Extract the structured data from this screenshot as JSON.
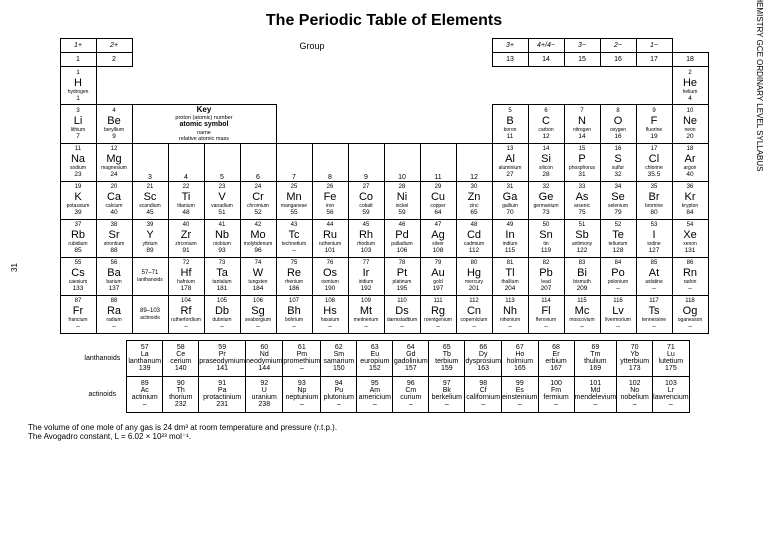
{
  "title": "The Periodic Table of Elements",
  "group_label": "Group",
  "key_label": "Key",
  "key_lines": [
    "proton (atomic) number",
    "atomic symbol",
    "name",
    "relative atomic mass"
  ],
  "side_right": "6092 CHEMISTRY GCE ORDINARY LEVEL SYLLABUS",
  "side_left": "31",
  "groups": [
    "1",
    "2",
    "13",
    "14",
    "15",
    "16",
    "17",
    "18"
  ],
  "ion_left": [
    "1+",
    "2+"
  ],
  "ion_right": [
    "3+",
    "4+/4−",
    "3−",
    "2−",
    "1−"
  ],
  "lanth_label": "lanthanoids",
  "act_label": "actinoids",
  "note1": "The volume of one mole of any gas is 24 dm³ at room temperature and pressure (r.t.p.).",
  "note2": "The Avogadro constant, L = 6.02 × 10²³ mol⁻¹.",
  "E": {
    "H": {
      "n": "1",
      "s": "H",
      "nm": "hydrogen",
      "m": "1"
    },
    "He": {
      "n": "2",
      "s": "He",
      "nm": "helium",
      "m": "4"
    },
    "Li": {
      "n": "3",
      "s": "Li",
      "nm": "lithium",
      "m": "7"
    },
    "Be": {
      "n": "4",
      "s": "Be",
      "nm": "beryllium",
      "m": "9"
    },
    "B": {
      "n": "5",
      "s": "B",
      "nm": "boron",
      "m": "11"
    },
    "C": {
      "n": "6",
      "s": "C",
      "nm": "carbon",
      "m": "12"
    },
    "N": {
      "n": "7",
      "s": "N",
      "nm": "nitrogen",
      "m": "14"
    },
    "O": {
      "n": "8",
      "s": "O",
      "nm": "oxygen",
      "m": "16"
    },
    "F": {
      "n": "9",
      "s": "F",
      "nm": "fluorine",
      "m": "19"
    },
    "Ne": {
      "n": "10",
      "s": "Ne",
      "nm": "neon",
      "m": "20"
    },
    "Na": {
      "n": "11",
      "s": "Na",
      "nm": "sodium",
      "m": "23"
    },
    "Mg": {
      "n": "12",
      "s": "Mg",
      "nm": "magnesium",
      "m": "24"
    },
    "Al": {
      "n": "13",
      "s": "Al",
      "nm": "aluminium",
      "m": "27"
    },
    "Si": {
      "n": "14",
      "s": "Si",
      "nm": "silicon",
      "m": "28"
    },
    "P": {
      "n": "15",
      "s": "P",
      "nm": "phosphorus",
      "m": "31"
    },
    "S": {
      "n": "16",
      "s": "S",
      "nm": "sulfur",
      "m": "32"
    },
    "Cl": {
      "n": "17",
      "s": "Cl",
      "nm": "chlorine",
      "m": "35.5"
    },
    "Ar": {
      "n": "18",
      "s": "Ar",
      "nm": "argon",
      "m": "40"
    },
    "K": {
      "n": "19",
      "s": "K",
      "nm": "potassium",
      "m": "39"
    },
    "Ca": {
      "n": "20",
      "s": "Ca",
      "nm": "calcium",
      "m": "40"
    },
    "Sc": {
      "n": "21",
      "s": "Sc",
      "nm": "scandium",
      "m": "45"
    },
    "Ti": {
      "n": "22",
      "s": "Ti",
      "nm": "titanium",
      "m": "48"
    },
    "V": {
      "n": "23",
      "s": "V",
      "nm": "vanadium",
      "m": "51"
    },
    "Cr": {
      "n": "24",
      "s": "Cr",
      "nm": "chromium",
      "m": "52"
    },
    "Mn": {
      "n": "25",
      "s": "Mn",
      "nm": "manganese",
      "m": "55"
    },
    "Fe": {
      "n": "26",
      "s": "Fe",
      "nm": "iron",
      "m": "56"
    },
    "Co": {
      "n": "27",
      "s": "Co",
      "nm": "cobalt",
      "m": "59"
    },
    "Ni": {
      "n": "28",
      "s": "Ni",
      "nm": "nickel",
      "m": "59"
    },
    "Cu": {
      "n": "29",
      "s": "Cu",
      "nm": "copper",
      "m": "64"
    },
    "Zn": {
      "n": "30",
      "s": "Zn",
      "nm": "zinc",
      "m": "65"
    },
    "Ga": {
      "n": "31",
      "s": "Ga",
      "nm": "gallium",
      "m": "70"
    },
    "Ge": {
      "n": "32",
      "s": "Ge",
      "nm": "germanium",
      "m": "73"
    },
    "As": {
      "n": "33",
      "s": "As",
      "nm": "arsenic",
      "m": "75"
    },
    "Se": {
      "n": "34",
      "s": "Se",
      "nm": "selenium",
      "m": "79"
    },
    "Br": {
      "n": "35",
      "s": "Br",
      "nm": "bromine",
      "m": "80"
    },
    "Kr": {
      "n": "36",
      "s": "Kr",
      "nm": "krypton",
      "m": "84"
    },
    "Rb": {
      "n": "37",
      "s": "Rb",
      "nm": "rubidium",
      "m": "85"
    },
    "Sr": {
      "n": "38",
      "s": "Sr",
      "nm": "strontium",
      "m": "88"
    },
    "Y": {
      "n": "39",
      "s": "Y",
      "nm": "yttrium",
      "m": "89"
    },
    "Zr": {
      "n": "40",
      "s": "Zr",
      "nm": "zirconium",
      "m": "91"
    },
    "Nb": {
      "n": "41",
      "s": "Nb",
      "nm": "niobium",
      "m": "93"
    },
    "Mo": {
      "n": "42",
      "s": "Mo",
      "nm": "molybdenum",
      "m": "96"
    },
    "Tc": {
      "n": "43",
      "s": "Tc",
      "nm": "technetium",
      "m": "–"
    },
    "Ru": {
      "n": "44",
      "s": "Ru",
      "nm": "ruthenium",
      "m": "101"
    },
    "Rh": {
      "n": "45",
      "s": "Rh",
      "nm": "rhodium",
      "m": "103"
    },
    "Pd": {
      "n": "46",
      "s": "Pd",
      "nm": "palladium",
      "m": "106"
    },
    "Ag": {
      "n": "47",
      "s": "Ag",
      "nm": "silver",
      "m": "108"
    },
    "Cd": {
      "n": "48",
      "s": "Cd",
      "nm": "cadmium",
      "m": "112"
    },
    "In": {
      "n": "49",
      "s": "In",
      "nm": "indium",
      "m": "115"
    },
    "Sn": {
      "n": "50",
      "s": "Sn",
      "nm": "tin",
      "m": "119"
    },
    "Sb": {
      "n": "51",
      "s": "Sb",
      "nm": "antimony",
      "m": "122"
    },
    "Te": {
      "n": "52",
      "s": "Te",
      "nm": "tellurium",
      "m": "128"
    },
    "I": {
      "n": "53",
      "s": "I",
      "nm": "iodine",
      "m": "127"
    },
    "Xe": {
      "n": "54",
      "s": "Xe",
      "nm": "xenon",
      "m": "131"
    },
    "Cs": {
      "n": "55",
      "s": "Cs",
      "nm": "caesium",
      "m": "133"
    },
    "Ba": {
      "n": "56",
      "s": "Ba",
      "nm": "barium",
      "m": "137"
    },
    "LaLu": {
      "n": "57–71",
      "s": "",
      "nm": "lanthanoids",
      "m": ""
    },
    "Hf": {
      "n": "72",
      "s": "Hf",
      "nm": "hafnium",
      "m": "178"
    },
    "Ta": {
      "n": "73",
      "s": "Ta",
      "nm": "tantalum",
      "m": "181"
    },
    "W": {
      "n": "74",
      "s": "W",
      "nm": "tungsten",
      "m": "184"
    },
    "Re": {
      "n": "75",
      "s": "Re",
      "nm": "rhenium",
      "m": "186"
    },
    "Os": {
      "n": "76",
      "s": "Os",
      "nm": "osmium",
      "m": "190"
    },
    "Ir": {
      "n": "77",
      "s": "Ir",
      "nm": "iridium",
      "m": "192"
    },
    "Pt": {
      "n": "78",
      "s": "Pt",
      "nm": "platinum",
      "m": "195"
    },
    "Au": {
      "n": "79",
      "s": "Au",
      "nm": "gold",
      "m": "197"
    },
    "Hg": {
      "n": "80",
      "s": "Hg",
      "nm": "mercury",
      "m": "201"
    },
    "Tl": {
      "n": "81",
      "s": "Tl",
      "nm": "thallium",
      "m": "204"
    },
    "Pb": {
      "n": "82",
      "s": "Pb",
      "nm": "lead",
      "m": "207"
    },
    "Bi": {
      "n": "83",
      "s": "Bi",
      "nm": "bismuth",
      "m": "209"
    },
    "Po": {
      "n": "84",
      "s": "Po",
      "nm": "polonium",
      "m": "–"
    },
    "At": {
      "n": "85",
      "s": "At",
      "nm": "astatine",
      "m": "–"
    },
    "Rn": {
      "n": "86",
      "s": "Rn",
      "nm": "radon",
      "m": "–"
    },
    "Fr": {
      "n": "87",
      "s": "Fr",
      "nm": "francium",
      "m": "–"
    },
    "Ra": {
      "n": "88",
      "s": "Ra",
      "nm": "radium",
      "m": "–"
    },
    "AcLr": {
      "n": "89–103",
      "s": "",
      "nm": "actinoids",
      "m": ""
    },
    "Rf": {
      "n": "104",
      "s": "Rf",
      "nm": "rutherfordium",
      "m": "–"
    },
    "Db": {
      "n": "105",
      "s": "Db",
      "nm": "dubnium",
      "m": "–"
    },
    "Sg": {
      "n": "106",
      "s": "Sg",
      "nm": "seaborgium",
      "m": "–"
    },
    "Bh": {
      "n": "107",
      "s": "Bh",
      "nm": "bohrium",
      "m": "–"
    },
    "Hs": {
      "n": "108",
      "s": "Hs",
      "nm": "hassium",
      "m": "–"
    },
    "Mt": {
      "n": "109",
      "s": "Mt",
      "nm": "meitnerium",
      "m": "–"
    },
    "Ds": {
      "n": "110",
      "s": "Ds",
      "nm": "darmstadtium",
      "m": "–"
    },
    "Rg": {
      "n": "111",
      "s": "Rg",
      "nm": "roentgenium",
      "m": "–"
    },
    "Cn": {
      "n": "112",
      "s": "Cn",
      "nm": "copernicium",
      "m": "–"
    },
    "Nh": {
      "n": "113",
      "s": "Nh",
      "nm": "nihonium",
      "m": "–"
    },
    "Fl": {
      "n": "114",
      "s": "Fl",
      "nm": "flerovium",
      "m": "–"
    },
    "Mc": {
      "n": "115",
      "s": "Mc",
      "nm": "moscovium",
      "m": "–"
    },
    "Lv": {
      "n": "116",
      "s": "Lv",
      "nm": "livermorium",
      "m": "–"
    },
    "Ts": {
      "n": "117",
      "s": "Ts",
      "nm": "tennessine",
      "m": "–"
    },
    "Og": {
      "n": "118",
      "s": "Og",
      "nm": "oganesson",
      "m": "–"
    },
    "La": {
      "n": "57",
      "s": "La",
      "nm": "lanthanum",
      "m": "139"
    },
    "Ce": {
      "n": "58",
      "s": "Ce",
      "nm": "cerium",
      "m": "140"
    },
    "Pr": {
      "n": "59",
      "s": "Pr",
      "nm": "praseodymium",
      "m": "141"
    },
    "Nd": {
      "n": "60",
      "s": "Nd",
      "nm": "neodymium",
      "m": "144"
    },
    "Pm": {
      "n": "61",
      "s": "Pm",
      "nm": "promethium",
      "m": "–"
    },
    "Sm": {
      "n": "62",
      "s": "Sm",
      "nm": "samarium",
      "m": "150"
    },
    "Eu": {
      "n": "63",
      "s": "Eu",
      "nm": "europium",
      "m": "152"
    },
    "Gd": {
      "n": "64",
      "s": "Gd",
      "nm": "gadolinium",
      "m": "157"
    },
    "Tb": {
      "n": "65",
      "s": "Tb",
      "nm": "terbium",
      "m": "159"
    },
    "Dy": {
      "n": "66",
      "s": "Dy",
      "nm": "dysprosium",
      "m": "163"
    },
    "Ho": {
      "n": "67",
      "s": "Ho",
      "nm": "holmium",
      "m": "165"
    },
    "Er": {
      "n": "68",
      "s": "Er",
      "nm": "erbium",
      "m": "167"
    },
    "Tm": {
      "n": "69",
      "s": "Tm",
      "nm": "thulium",
      "m": "169"
    },
    "Yb": {
      "n": "70",
      "s": "Yb",
      "nm": "ytterbium",
      "m": "173"
    },
    "Lu": {
      "n": "71",
      "s": "Lu",
      "nm": "lutetium",
      "m": "175"
    },
    "Ac": {
      "n": "89",
      "s": "Ac",
      "nm": "actinium",
      "m": "–"
    },
    "Th": {
      "n": "90",
      "s": "Th",
      "nm": "thorium",
      "m": "232"
    },
    "Pa": {
      "n": "91",
      "s": "Pa",
      "nm": "protactinium",
      "m": "231"
    },
    "U": {
      "n": "92",
      "s": "U",
      "nm": "uranium",
      "m": "238"
    },
    "Np": {
      "n": "93",
      "s": "Np",
      "nm": "neptunium",
      "m": "–"
    },
    "Pu": {
      "n": "94",
      "s": "Pu",
      "nm": "plutonium",
      "m": "–"
    },
    "Am": {
      "n": "95",
      "s": "Am",
      "nm": "americium",
      "m": "–"
    },
    "Cm": {
      "n": "96",
      "s": "Cm",
      "nm": "curium",
      "m": "–"
    },
    "Bk": {
      "n": "97",
      "s": "Bk",
      "nm": "berkelium",
      "m": "–"
    },
    "Cf": {
      "n": "98",
      "s": "Cf",
      "nm": "californium",
      "m": "–"
    },
    "Es": {
      "n": "99",
      "s": "Es",
      "nm": "einsteinium",
      "m": "–"
    },
    "Fm": {
      "n": "100",
      "s": "Fm",
      "nm": "fermium",
      "m": "–"
    },
    "Md": {
      "n": "101",
      "s": "Md",
      "nm": "mendelevium",
      "m": "–"
    },
    "No": {
      "n": "102",
      "s": "No",
      "nm": "nobelium",
      "m": "–"
    },
    "Lr": {
      "n": "103",
      "s": "Lr",
      "nm": "lawrencium",
      "m": "–"
    }
  },
  "rows": [
    [
      "H",
      "",
      "",
      "",
      "",
      "",
      "",
      "",
      "",
      "",
      "",
      "",
      "",
      "",
      "",
      "",
      "",
      "He"
    ],
    [
      "Li",
      "Be",
      "KEY",
      "KEY",
      "KEY",
      "KEY",
      "",
      "",
      "",
      "",
      "",
      "",
      "B",
      "C",
      "N",
      "O",
      "F",
      "Ne"
    ],
    [
      "Na",
      "Mg",
      "3",
      "4",
      "5",
      "6",
      "7",
      "8",
      "9",
      "10",
      "11",
      "12",
      "Al",
      "Si",
      "P",
      "S",
      "Cl",
      "Ar"
    ],
    [
      "K",
      "Ca",
      "Sc",
      "Ti",
      "V",
      "Cr",
      "Mn",
      "Fe",
      "Co",
      "Ni",
      "Cu",
      "Zn",
      "Ga",
      "Ge",
      "As",
      "Se",
      "Br",
      "Kr"
    ],
    [
      "Rb",
      "Sr",
      "Y",
      "Zr",
      "Nb",
      "Mo",
      "Tc",
      "Ru",
      "Rh",
      "Pd",
      "Ag",
      "Cd",
      "In",
      "Sn",
      "Sb",
      "Te",
      "I",
      "Xe"
    ],
    [
      "Cs",
      "Ba",
      "LaLu",
      "Hf",
      "Ta",
      "W",
      "Re",
      "Os",
      "Ir",
      "Pt",
      "Au",
      "Hg",
      "Tl",
      "Pb",
      "Bi",
      "Po",
      "At",
      "Rn"
    ],
    [
      "Fr",
      "Ra",
      "AcLr",
      "Rf",
      "Db",
      "Sg",
      "Bh",
      "Hs",
      "Mt",
      "Ds",
      "Rg",
      "Cn",
      "Nh",
      "Fl",
      "Mc",
      "Lv",
      "Ts",
      "Og"
    ]
  ],
  "lanth": [
    "La",
    "Ce",
    "Pr",
    "Nd",
    "Pm",
    "Sm",
    "Eu",
    "Gd",
    "Tb",
    "Dy",
    "Ho",
    "Er",
    "Tm",
    "Yb",
    "Lu"
  ],
  "act": [
    "Ac",
    "Th",
    "Pa",
    "U",
    "Np",
    "Pu",
    "Am",
    "Cm",
    "Bk",
    "Cf",
    "Es",
    "Fm",
    "Md",
    "No",
    "Lr"
  ]
}
